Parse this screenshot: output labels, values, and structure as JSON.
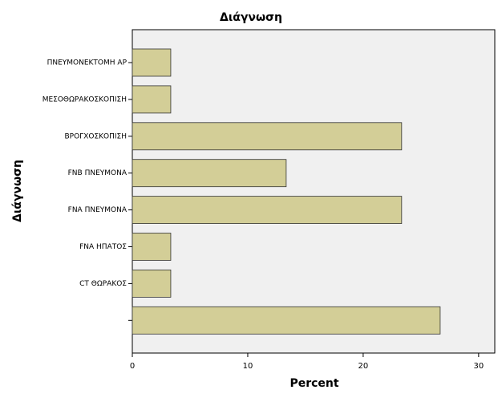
{
  "chart_data": {
    "type": "bar",
    "orientation": "horizontal",
    "title": "Διάγνωση",
    "x_label": "Percent",
    "y_label": "Διάγνωση",
    "categories": [
      "ΠΝΕΥΜΟΝΕΚΤΟΜΗ ΑΡ",
      "ΜΕΣΟΘΩΡΑΚΟΣΚΟΠΙΣΗ",
      "ΒΡΟΓΧΟΣΚΟΠΙΣΗ",
      "FNB ΠΝΕΥΜΟΝΑ",
      "FNA ΠΝΕΥΜΟΝΑ",
      "FNA ΗΠΑΤΟΣ",
      "CT ΘΩΡΑΚΟΣ",
      null
    ],
    "values": [
      3.33,
      3.33,
      23.33,
      13.33,
      23.33,
      3.33,
      3.33,
      26.67
    ],
    "color": "#d3ce97",
    "xlim": [
      0,
      31.4
    ],
    "xticks": [
      0,
      10,
      20,
      30
    ],
    "grid": false
  }
}
